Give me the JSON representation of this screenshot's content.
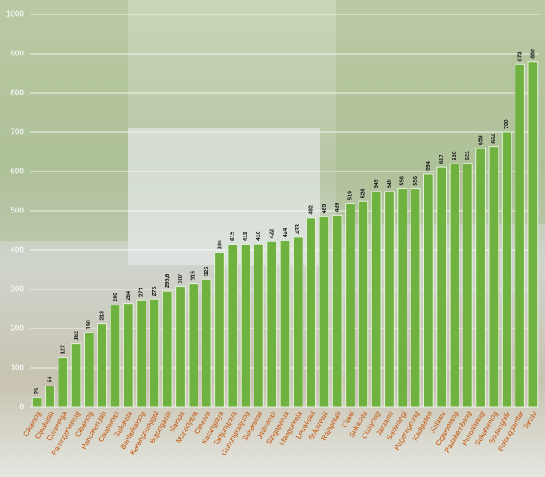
{
  "chart_data": {
    "type": "bar",
    "categories": [
      "Cikalong",
      "Cipatujah",
      "Culamega",
      "Parungponteng",
      "Cibalong",
      "Pancatengah",
      "Cikatomas",
      "Sukaraja",
      "Bantarkalong",
      "Karangnunggal",
      "Bojongasih",
      "Salopa",
      "Manonjaya",
      "Cineam",
      "Karangjaya",
      "Tanjungjaya",
      "Gunungtanjung",
      "Sukarame",
      "Jatiwaras",
      "Singaparna",
      "Mangunreja",
      "Leuwisari",
      "Sukaresik",
      "Rajapolah",
      "Ciawi",
      "Sukaratu",
      "Cisayong",
      "Jamanis",
      "Sariwangi",
      "Pagerageung",
      "Kadipaten",
      "Salawu",
      "Cigalontang",
      "Padakembang",
      "Puspahiang",
      "Sukahening",
      "Sodonghilir",
      "Bojonggambir",
      "Taraju"
    ],
    "values": [
      25,
      54,
      127,
      162,
      190,
      213,
      260,
      264,
      273,
      275,
      295.6,
      307,
      315,
      326,
      394,
      415,
      415,
      416,
      422,
      424,
      433,
      482,
      485,
      489,
      519,
      524,
      549,
      549,
      556,
      556,
      594,
      612,
      620,
      621,
      659,
      664,
      700,
      873,
      880
    ],
    "value_labels": [
      "25",
      "54",
      "127",
      "162",
      "190",
      "213",
      "260",
      "264",
      "273",
      "275",
      "295,6",
      "307",
      "315",
      "326",
      "394",
      "415",
      "415",
      "416",
      "422",
      "424",
      "433",
      "482",
      "485",
      "489",
      "519",
      "524",
      "549",
      "549",
      "556",
      "556",
      "594",
      "612",
      "620",
      "621",
      "659",
      "664",
      "700",
      "873",
      "880"
    ],
    "color": "#6fb23f",
    "ylim": [
      0,
      1000
    ],
    "yticks": [
      0,
      100,
      200,
      300,
      400,
      500,
      600,
      700,
      800,
      900,
      1000
    ],
    "grid": true
  }
}
